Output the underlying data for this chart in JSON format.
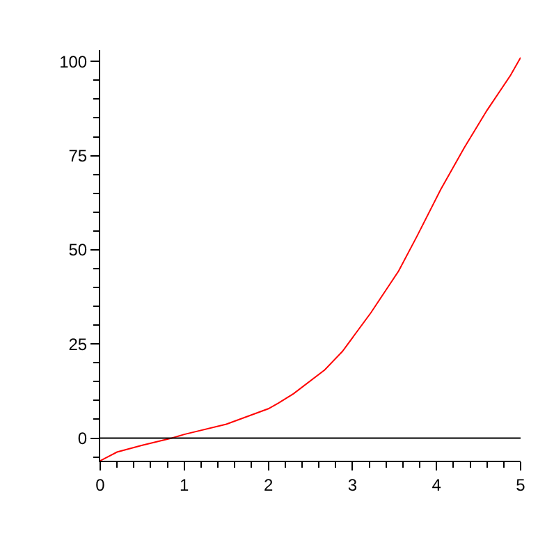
{
  "chart_data": {
    "type": "line",
    "x": [
      0,
      0.2,
      0.5,
      0.85,
      1,
      1.5,
      2,
      2.12,
      2.3,
      2.67,
      2.88,
      3.22,
      3.55,
      3.77,
      4.05,
      4.33,
      4.6,
      4.88,
      5
    ],
    "series": [
      {
        "color": "#ff0000",
        "values": [
          -6,
          -3.7,
          -1.9,
          0,
          1,
          3.7,
          7.8,
          9.3,
          11.8,
          18.1,
          23,
          33.3,
          44.4,
          53.7,
          66,
          77.1,
          87,
          96.3,
          101
        ]
      }
    ],
    "xlim": [
      0,
      5
    ],
    "xticks": [
      0,
      1,
      2,
      3,
      4,
      5
    ],
    "ylim": [
      -6,
      103
    ],
    "yticks": [
      0,
      25,
      50,
      75,
      100
    ],
    "grid": false,
    "ref_lines": [
      {
        "axis": "y",
        "value": 0,
        "color": "#000000"
      }
    ],
    "marker": "none",
    "line_style": "solid"
  }
}
